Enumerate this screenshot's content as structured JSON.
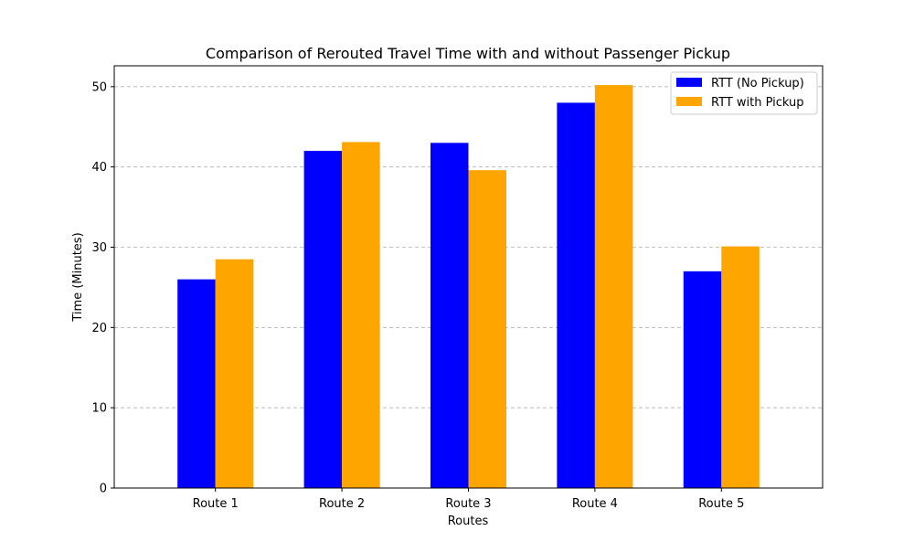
{
  "chart_data": {
    "type": "bar",
    "title": "Comparison of Rerouted Travel Time with and without Passenger Pickup",
    "xlabel": "Routes",
    "ylabel": "Time (Minutes)",
    "categories": [
      "Route 1",
      "Route 2",
      "Route 3",
      "Route 4",
      "Route 5"
    ],
    "series": [
      {
        "name": "RTT (No Pickup)",
        "color": "#0000ff",
        "values": [
          26,
          42,
          43,
          48,
          27
        ]
      },
      {
        "name": "RTT with Pickup",
        "color": "#ffa500",
        "values": [
          28.5,
          43.1,
          39.6,
          50.2,
          30.1
        ]
      }
    ],
    "ylim": [
      0,
      52.6
    ],
    "yticks": [
      0,
      10,
      20,
      30,
      40,
      50
    ],
    "grid": "y-dashed",
    "legend_position": "top-right"
  }
}
